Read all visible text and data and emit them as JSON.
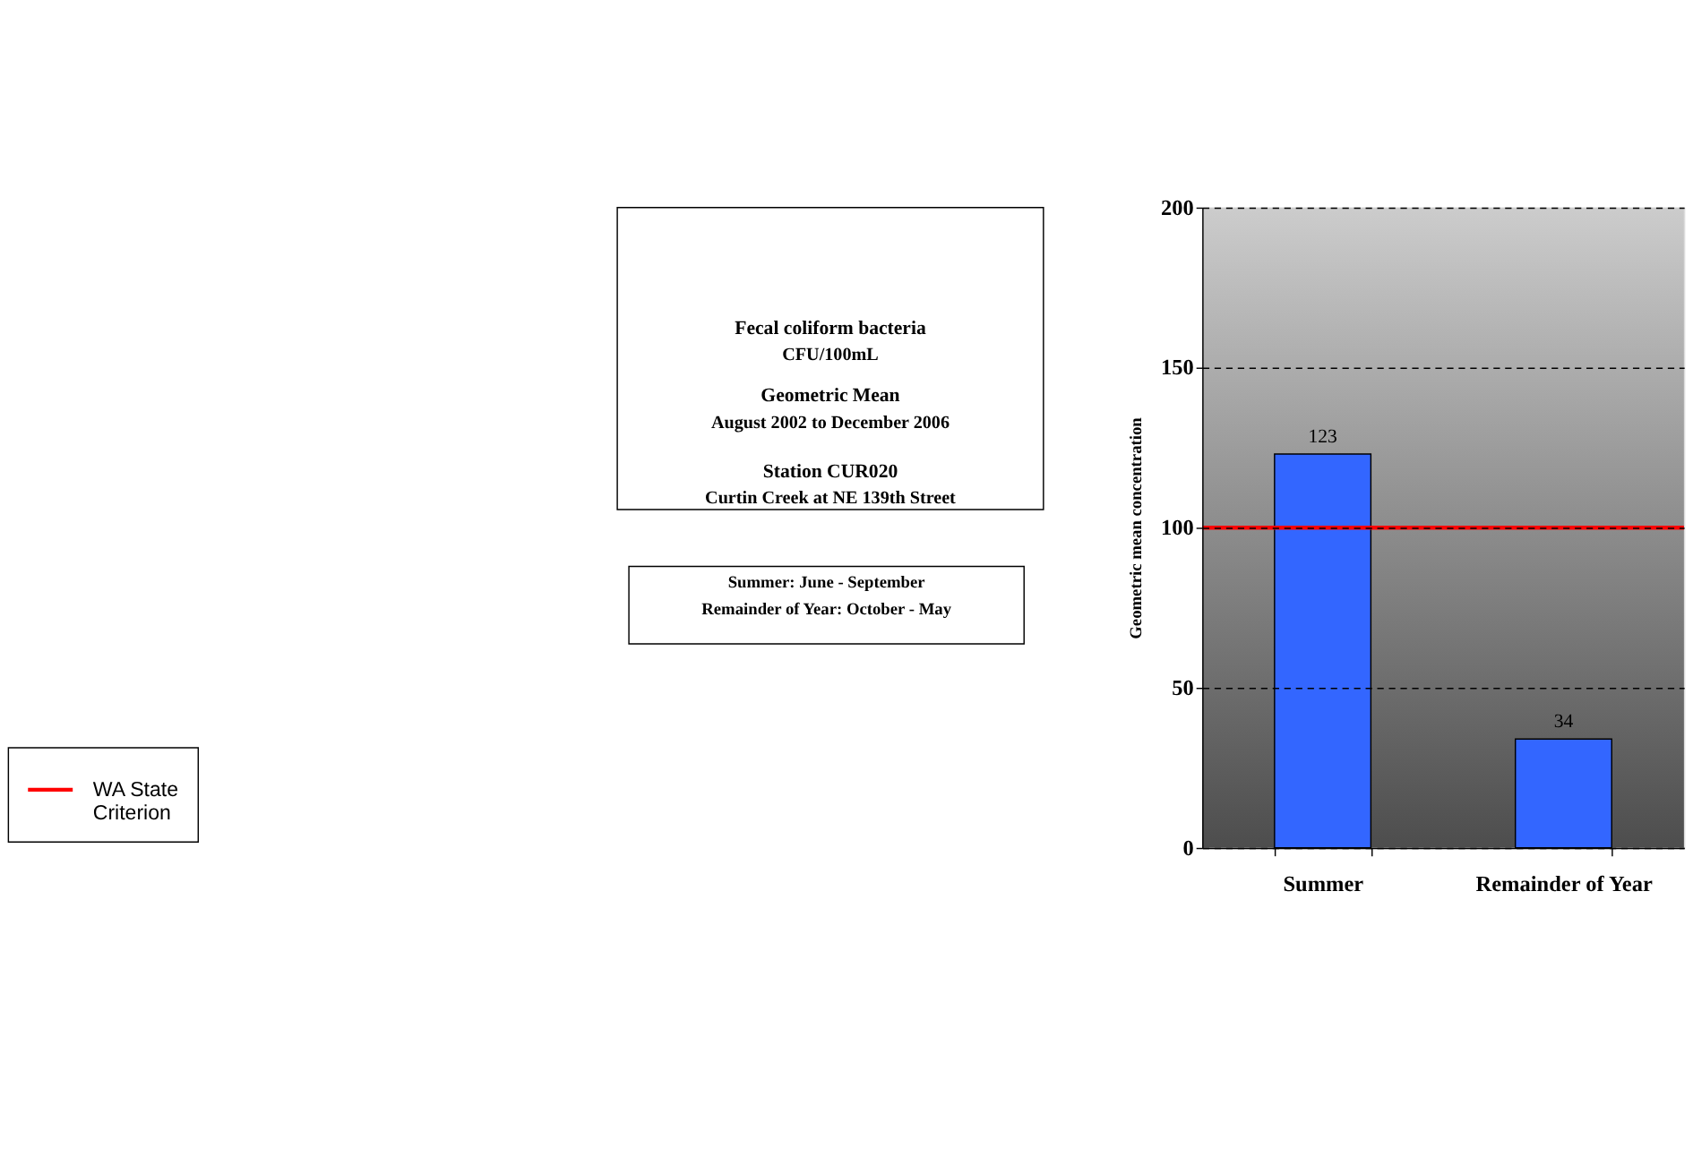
{
  "chart_data": {
    "type": "bar",
    "title": "Fecal coliform bacteria",
    "subtitle": "CFU/100mL",
    "annotations": [
      "Geometric Mean",
      "August 2002 to December 2006",
      "Station CUR020",
      "Curtin Creek at NE 139th Street",
      "Summer:  June - September",
      "Remainder of Year:  October - May"
    ],
    "categories": [
      "Summer",
      "Remainder of Year"
    ],
    "values": [
      123,
      34
    ],
    "color": "#3366ff",
    "data_labels": true,
    "ylabel": "Geometric mean concentration",
    "ylim": [
      0,
      200
    ],
    "yticks": [
      0,
      50,
      100,
      150,
      200
    ],
    "grid": "y",
    "ref_lines": [
      {
        "axis": "y",
        "value": 100,
        "label": "WA State Criterion",
        "color": "#ff0000"
      }
    ],
    "legend": "left"
  }
}
